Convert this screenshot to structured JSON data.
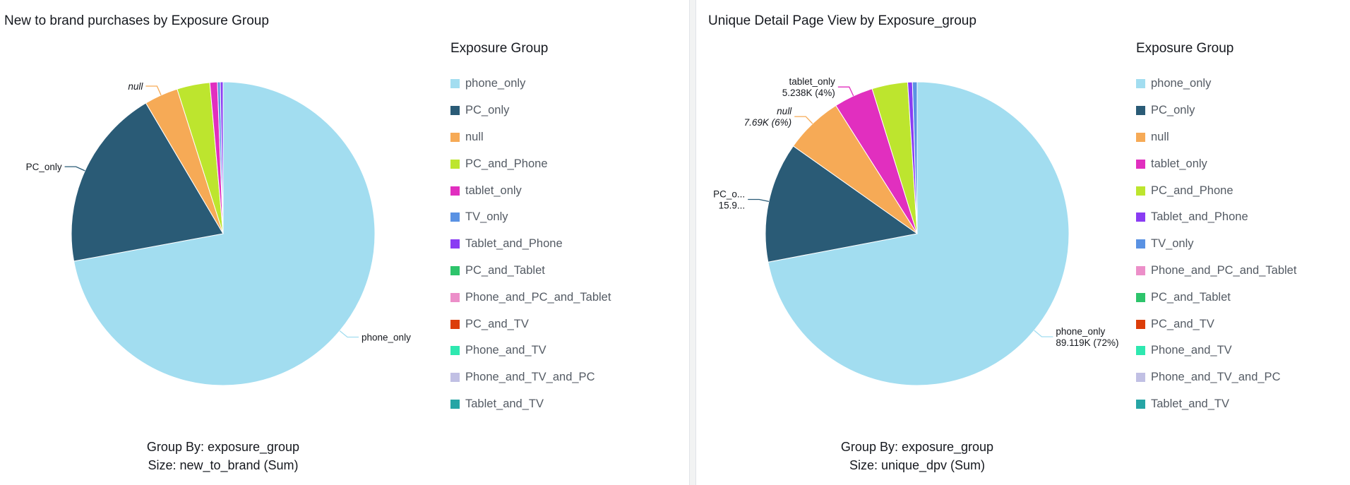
{
  "colors": {
    "phone_only": "#a2ddf0",
    "PC_only": "#2a5b76",
    "null": "#f6aa56",
    "PC_and_Phone": "#bde52e",
    "tablet_only": "#e12fbf",
    "TV_only": "#5a92e3",
    "Tablet_and_Phone": "#8a3cf3",
    "PC_and_Tablet": "#2dc46b",
    "Phone_and_PC_and_Tablet": "#ec8fc9",
    "PC_and_TV": "#dc3d09",
    "Phone_and_TV": "#2ee8b0",
    "Phone_and_TV_and_PC": "#c1c0e4",
    "Tablet_and_TV": "#26a5a5"
  },
  "chart_data": [
    {
      "type": "pie",
      "title": "New to brand purchases by Exposure Group",
      "legend_title": "Exposure Group",
      "legend_placement": "right",
      "caption": [
        "Group By: exposure_group",
        "Size: new_to_brand (Sum)"
      ],
      "legend": [
        "phone_only",
        "PC_only",
        "null",
        "PC_and_Phone",
        "tablet_only",
        "TV_only",
        "Tablet_and_Phone",
        "PC_and_Tablet",
        "Phone_and_PC_and_Tablet",
        "PC_and_TV",
        "Phone_and_TV",
        "Phone_and_TV_and_PC",
        "Tablet_and_TV"
      ],
      "slices": [
        {
          "category": "phone_only",
          "share": 72.1,
          "label": "phone_only"
        },
        {
          "category": "PC_only",
          "share": 19.4,
          "label": "PC_only"
        },
        {
          "category": "null",
          "share": 3.6,
          "label": "null"
        },
        {
          "category": "PC_and_Phone",
          "share": 3.5
        },
        {
          "category": "tablet_only",
          "share": 0.8
        },
        {
          "category": "TV_only",
          "share": 0.3
        },
        {
          "category": "Tablet_and_Phone",
          "share": 0.3
        }
      ]
    },
    {
      "type": "pie",
      "title": "Unique Detail Page View by Exposure_group",
      "legend_title": "Exposure Group",
      "legend_placement": "right",
      "caption": [
        "Group By: exposure_group",
        "Size: unique_dpv (Sum)"
      ],
      "legend": [
        "phone_only",
        "PC_only",
        "null",
        "tablet_only",
        "PC_and_Phone",
        "Tablet_and_Phone",
        "TV_only",
        "Phone_and_PC_and_Tablet",
        "PC_and_Tablet",
        "PC_and_TV",
        "Phone_and_TV",
        "Phone_and_TV_and_PC",
        "Tablet_and_TV"
      ],
      "slices": [
        {
          "category": "phone_only",
          "share": 72.0,
          "label": "phone_only",
          "value_label": "89.119K (72%)"
        },
        {
          "category": "PC_only",
          "share": 12.8,
          "label": "PC_o...",
          "value_label": "15.9..."
        },
        {
          "category": "null",
          "share": 6.2,
          "label": "null",
          "value_label": "7.69K (6%)"
        },
        {
          "category": "tablet_only",
          "share": 4.2,
          "label": "tablet_only",
          "value_label": "5.238K (4%)"
        },
        {
          "category": "PC_and_Phone",
          "share": 3.8
        },
        {
          "category": "Tablet_and_Phone",
          "share": 0.5
        },
        {
          "category": "TV_only",
          "share": 0.5
        }
      ]
    }
  ]
}
